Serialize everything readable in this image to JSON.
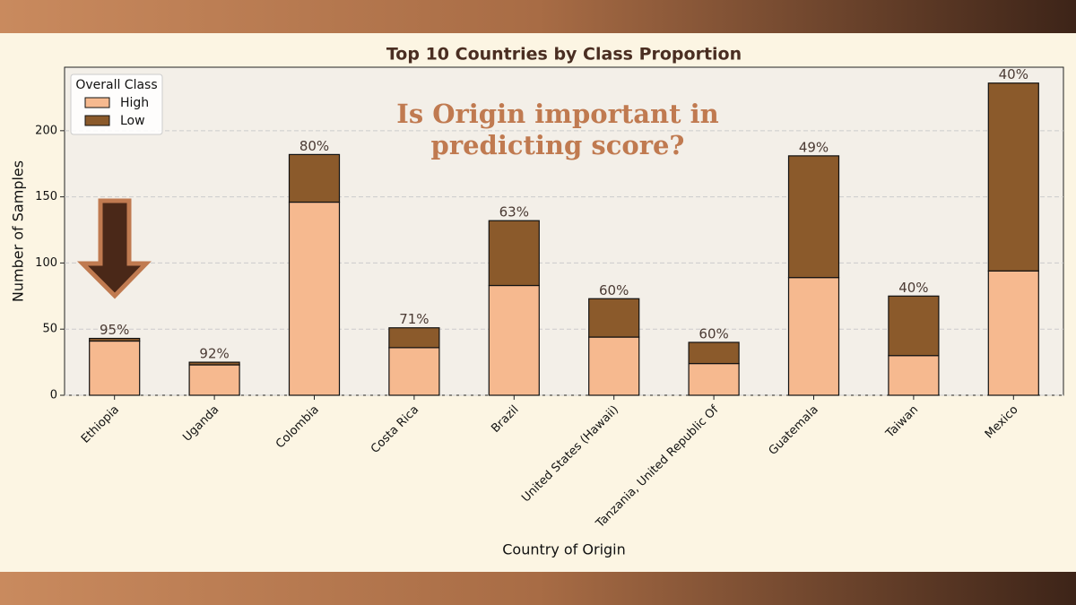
{
  "chart_data": {
    "type": "stacked_bar",
    "title": "Top 10 Countries by Class Proportion",
    "annotation": [
      "Is Origin important in",
      "predicting score?"
    ],
    "x_label": "Country of Origin",
    "y_label": "Number of Samples",
    "legend_title": "Overall Class",
    "legend_position": "upper-left",
    "grid": true,
    "categories": [
      "Ethiopia",
      "Uganda",
      "Colombia",
      "Costa Rica",
      "Brazil",
      "United States (Hawaii)",
      "Tanzania, United Republic Of",
      "Guatemala",
      "Taiwan",
      "Mexico"
    ],
    "series": [
      {
        "name": "High",
        "color": "#f6b98f",
        "values": [
          41,
          23,
          146,
          36,
          83,
          44,
          24,
          89,
          30,
          94
        ]
      },
      {
        "name": "Low",
        "color": "#8b5a2b",
        "values": [
          2,
          2,
          36,
          15,
          49,
          29,
          16,
          92,
          45,
          142
        ]
      }
    ],
    "high_share": {
      "values": [
        95,
        92,
        80,
        71,
        63,
        60,
        60,
        49,
        40,
        40
      ],
      "value_labels": [
        "95%",
        "92%",
        "80%",
        "71%",
        "63%",
        "60%",
        "60%",
        "49%",
        "40%",
        "40%"
      ]
    },
    "ylim": [
      0,
      248
    ],
    "yticks": [
      0,
      50,
      100,
      150,
      200
    ]
  }
}
